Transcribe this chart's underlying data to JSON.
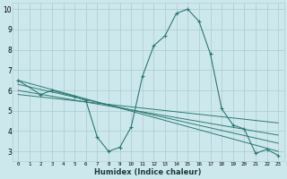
{
  "xlabel": "Humidex (Indice chaleur)",
  "xlim": [
    -0.5,
    23.5
  ],
  "ylim": [
    2.5,
    10.3
  ],
  "yticks": [
    3,
    4,
    5,
    6,
    7,
    8,
    9,
    10
  ],
  "xticks": [
    0,
    1,
    2,
    3,
    4,
    5,
    6,
    7,
    8,
    9,
    10,
    11,
    12,
    13,
    14,
    15,
    16,
    17,
    18,
    19,
    20,
    21,
    22,
    23
  ],
  "xtick_labels": [
    "0",
    "1",
    "2",
    "3",
    "4",
    "5",
    "6",
    "7",
    "8",
    "9",
    "10",
    "11",
    "12",
    "13",
    "14",
    "15",
    "16",
    "17",
    "18",
    "19",
    "20",
    "21",
    "22",
    "23"
  ],
  "bg_color": "#cde8ed",
  "grid_color": "#aecfd6",
  "line_color": "#2b7a72",
  "series": [
    [
      0,
      6.5
    ],
    [
      2,
      5.8
    ],
    [
      3,
      6.0
    ],
    [
      5,
      5.7
    ],
    [
      6,
      5.5
    ],
    [
      7,
      3.7
    ],
    [
      8,
      3.0
    ],
    [
      9,
      3.2
    ],
    [
      10,
      4.2
    ],
    [
      11,
      6.7
    ],
    [
      12,
      8.2
    ],
    [
      13,
      8.7
    ],
    [
      14,
      9.8
    ],
    [
      15,
      10.0
    ],
    [
      16,
      9.4
    ],
    [
      17,
      7.8
    ],
    [
      18,
      5.1
    ],
    [
      19,
      4.3
    ],
    [
      20,
      4.1
    ],
    [
      21,
      2.9
    ],
    [
      22,
      3.1
    ],
    [
      23,
      2.8
    ]
  ],
  "regression_lines": [
    {
      "x0": 0,
      "y0": 6.5,
      "x1": 23,
      "y1": 3.0
    },
    {
      "x0": 0,
      "y0": 6.3,
      "x1": 23,
      "y1": 3.4
    },
    {
      "x0": 0,
      "y0": 6.0,
      "x1": 23,
      "y1": 3.8
    },
    {
      "x0": 0,
      "y0": 5.8,
      "x1": 23,
      "y1": 4.4
    }
  ]
}
